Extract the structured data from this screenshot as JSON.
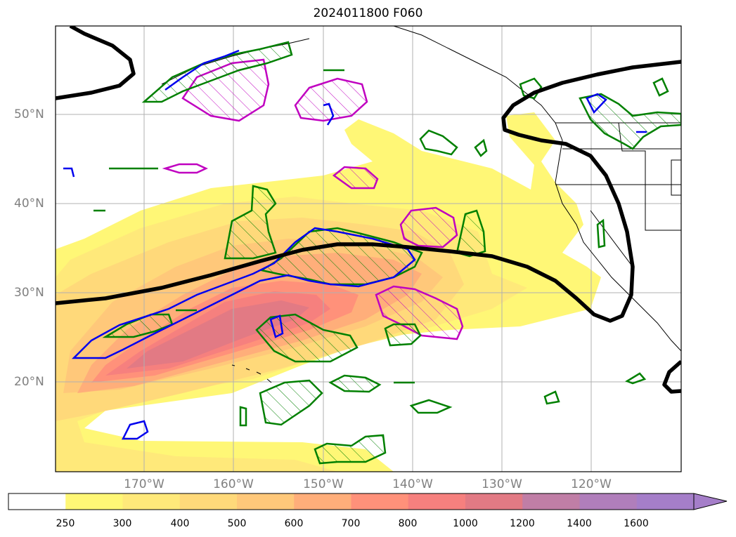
{
  "title": "2024011800 F060",
  "latitude_labels": [
    "50°N",
    "40°N",
    "30°N",
    "20°N"
  ],
  "longitude_labels": [
    "170°W",
    "160°W",
    "150°W",
    "140°W",
    "130°W",
    "120°W"
  ],
  "colorbar": {
    "labels": [
      "250",
      "300",
      "400",
      "500",
      "600",
      "700",
      "800",
      "1000",
      "1200",
      "1400",
      "1600"
    ],
    "colors": [
      "#ffffff",
      "#fff776",
      "#ffe97a",
      "#ffd97a",
      "#ffc87a",
      "#ffae7a",
      "#ff917a",
      "#f6807e",
      "#e27a84",
      "#c07ea6",
      "#b07ebb",
      "#a57ec9"
    ],
    "extend": "max"
  },
  "map_colors": {
    "shade_levels": [
      "#fff776",
      "#ffe97a",
      "#ffd97a",
      "#ffc87a",
      "#ffae7a",
      "#ff917a",
      "#f6807e",
      "#e27a84"
    ],
    "contour_green": "#008000",
    "contour_magenta": "#c000c0",
    "contour_blue": "#0000ee",
    "heavy_contour": "#000000",
    "coastline": "#000000",
    "grid": "#b0b0b0"
  }
}
